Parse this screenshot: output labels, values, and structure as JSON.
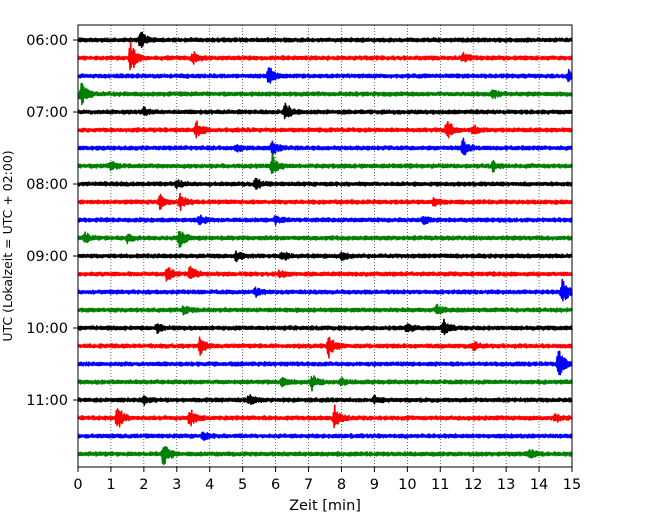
{
  "chart_data": {
    "type": "line",
    "subtype": "helicorder",
    "xlabel": "Zeit  [min]",
    "ylabel": "UTC (Lokalzeit = UTC + 02:00)",
    "xlim": [
      0,
      15
    ],
    "x_ticks": [
      "0",
      "1",
      "2",
      "3",
      "4",
      "5",
      "6",
      "7",
      "8",
      "9",
      "10",
      "11",
      "12",
      "13",
      "14",
      "15"
    ],
    "y_ticks": [
      "06:00",
      "07:00",
      "08:00",
      "09:00",
      "10:00",
      "11:00"
    ],
    "grid_x": "dotted vertical at each minute",
    "trace_colors": [
      "#000000",
      "#ff0000",
      "#0000ff",
      "#008000"
    ],
    "traces": [
      {
        "start": "06:00",
        "events": [
          [
            1.9,
            1.0
          ]
        ]
      },
      {
        "start": "06:15",
        "events": [
          [
            1.6,
            1.7
          ],
          [
            3.5,
            0.6
          ],
          [
            11.7,
            0.5
          ]
        ]
      },
      {
        "start": "06:30",
        "events": [
          [
            5.8,
            1.0
          ],
          [
            14.9,
            0.5
          ]
        ]
      },
      {
        "start": "06:45",
        "events": [
          [
            0.1,
            1.3
          ],
          [
            12.6,
            0.5
          ]
        ]
      },
      {
        "start": "07:00",
        "events": [
          [
            6.3,
            1.0
          ],
          [
            2.0,
            0.4
          ]
        ]
      },
      {
        "start": "07:15",
        "events": [
          [
            3.6,
            0.9
          ],
          [
            11.2,
            1.2
          ],
          [
            12.0,
            0.5
          ]
        ]
      },
      {
        "start": "07:30",
        "events": [
          [
            5.9,
            0.7
          ],
          [
            11.7,
            1.0
          ],
          [
            4.8,
            0.4
          ]
        ]
      },
      {
        "start": "07:45",
        "events": [
          [
            5.9,
            1.1
          ],
          [
            1.0,
            0.5
          ],
          [
            12.6,
            0.5
          ]
        ]
      },
      {
        "start": "08:00",
        "events": [
          [
            5.4,
            0.6
          ],
          [
            3.0,
            0.4
          ]
        ]
      },
      {
        "start": "08:15",
        "events": [
          [
            2.5,
            0.8
          ],
          [
            3.1,
            0.8
          ],
          [
            10.8,
            0.4
          ]
        ]
      },
      {
        "start": "08:30",
        "events": [
          [
            3.7,
            0.6
          ],
          [
            6.0,
            0.4
          ],
          [
            10.5,
            0.4
          ]
        ]
      },
      {
        "start": "08:45",
        "events": [
          [
            3.1,
            1.3
          ],
          [
            0.2,
            0.6
          ],
          [
            1.5,
            0.4
          ]
        ]
      },
      {
        "start": "09:00",
        "events": [
          [
            4.8,
            0.5
          ],
          [
            6.2,
            0.5
          ],
          [
            8.0,
            0.4
          ]
        ]
      },
      {
        "start": "09:15",
        "events": [
          [
            2.7,
            0.9
          ],
          [
            3.4,
            0.9
          ],
          [
            6.1,
            0.4
          ]
        ]
      },
      {
        "start": "09:30",
        "events": [
          [
            14.7,
            1.6
          ],
          [
            5.4,
            0.4
          ]
        ]
      },
      {
        "start": "09:45",
        "events": [
          [
            10.9,
            0.5
          ],
          [
            3.2,
            0.4
          ]
        ]
      },
      {
        "start": "10:00",
        "events": [
          [
            11.1,
            0.9
          ],
          [
            10.0,
            0.5
          ],
          [
            2.4,
            0.4
          ]
        ]
      },
      {
        "start": "10:15",
        "events": [
          [
            3.7,
            0.9
          ],
          [
            7.6,
            1.3
          ],
          [
            12.0,
            0.4
          ]
        ]
      },
      {
        "start": "10:30",
        "events": [
          [
            14.6,
            1.9
          ]
        ]
      },
      {
        "start": "10:45",
        "events": [
          [
            7.1,
            0.8
          ],
          [
            6.2,
            0.4
          ],
          [
            8.0,
            0.4
          ]
        ]
      },
      {
        "start": "11:00",
        "events": [
          [
            5.2,
            0.6
          ],
          [
            2.0,
            0.4
          ],
          [
            9.0,
            0.4
          ]
        ]
      },
      {
        "start": "11:15",
        "events": [
          [
            1.2,
            1.3
          ],
          [
            3.4,
            1.0
          ],
          [
            7.8,
            1.3
          ],
          [
            14.5,
            0.4
          ]
        ]
      },
      {
        "start": "11:30",
        "events": [
          [
            3.8,
            0.4
          ]
        ]
      },
      {
        "start": "11:45",
        "events": [
          [
            2.6,
            1.4
          ],
          [
            13.7,
            0.5
          ]
        ]
      }
    ]
  }
}
